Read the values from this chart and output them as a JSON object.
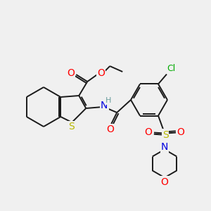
{
  "background_color": "#f0f0f0",
  "bond_color": "#1a1a1a",
  "atom_colors": {
    "S": "#b8b800",
    "O": "#ff0000",
    "N_amide": "#0000e0",
    "N_morph": "#0000e0",
    "Cl": "#00aa00",
    "S_sulfonyl": "#b8b800",
    "O_sulfonyl": "#ff0000",
    "O_morph": "#ff0000",
    "H": "#6b9e9e",
    "C": "#1a1a1a"
  },
  "figsize": [
    3.0,
    3.0
  ],
  "dpi": 100
}
